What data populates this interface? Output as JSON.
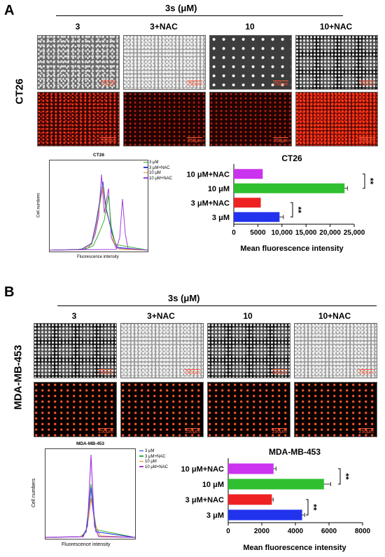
{
  "panels": [
    {
      "letter": "A",
      "title": "3s (μM)",
      "columns": [
        "3",
        "3+NAC",
        "10",
        "10+NAC"
      ],
      "cell_line": "CT26",
      "scale_label": "250μm",
      "flow": {
        "title": "CT26",
        "legend": [
          "3 μM",
          "3 μM+NAC",
          "10 μM",
          "10 μM+NAC"
        ],
        "ylabel": "Cell numbers",
        "xlabel": "Fluorescence intensity",
        "colors": [
          "#33b233",
          "#3344cc",
          "#e39a2b",
          "#a23ce0"
        ]
      },
      "chart_data": {
        "type": "bar",
        "title": "CT26",
        "categories": [
          "10 μM+NAC",
          "10 μM",
          "3 μM+NAC",
          "3 μM"
        ],
        "values": [
          6000,
          23000,
          5600,
          9500
        ],
        "errors": [
          0,
          600,
          0,
          800
        ],
        "colors": [
          "#cc33ee",
          "#2fbf2f",
          "#ee2222",
          "#2233ee"
        ],
        "xlabel": "Mean fluorescence intensity",
        "xlim": [
          0,
          25000
        ],
        "xticks": [
          "0",
          "5000",
          "10,000",
          "15,000",
          "20,000",
          "25,000"
        ],
        "significance": [
          "**",
          "**"
        ]
      }
    },
    {
      "letter": "B",
      "title": "3s (μM)",
      "columns": [
        "3",
        "3+NAC",
        "10",
        "10+NAC"
      ],
      "cell_line": "MDA-MB-453",
      "scale_label": "250μm",
      "flow": {
        "title": "MDA-MB-453",
        "legend": [
          "3 μM",
          "3 μM+NAC",
          "10 μM",
          "10 μM+NAC"
        ],
        "ylabel": "Cell numbers",
        "xlabel": "Fluorescence intensity",
        "colors": [
          "#2233ee",
          "#33b233",
          "#e39a2b",
          "#a23ce0"
        ]
      },
      "chart_data": {
        "type": "bar",
        "title": "MDA-MB-453",
        "categories": [
          "10 μM+NAC",
          "10 μM",
          "3 μM+NAC",
          "3 μM"
        ],
        "values": [
          2700,
          5700,
          2600,
          4400
        ],
        "errors": [
          150,
          400,
          80,
          150
        ],
        "colors": [
          "#cc33ee",
          "#2fbf2f",
          "#ee2222",
          "#2233ee"
        ],
        "xlabel": "Mean fluorescence intensity",
        "xlim": [
          0,
          8000
        ],
        "xticks": [
          "0",
          "2000",
          "4000",
          "6000",
          "8000"
        ],
        "significance": [
          "**",
          "**"
        ]
      }
    }
  ]
}
